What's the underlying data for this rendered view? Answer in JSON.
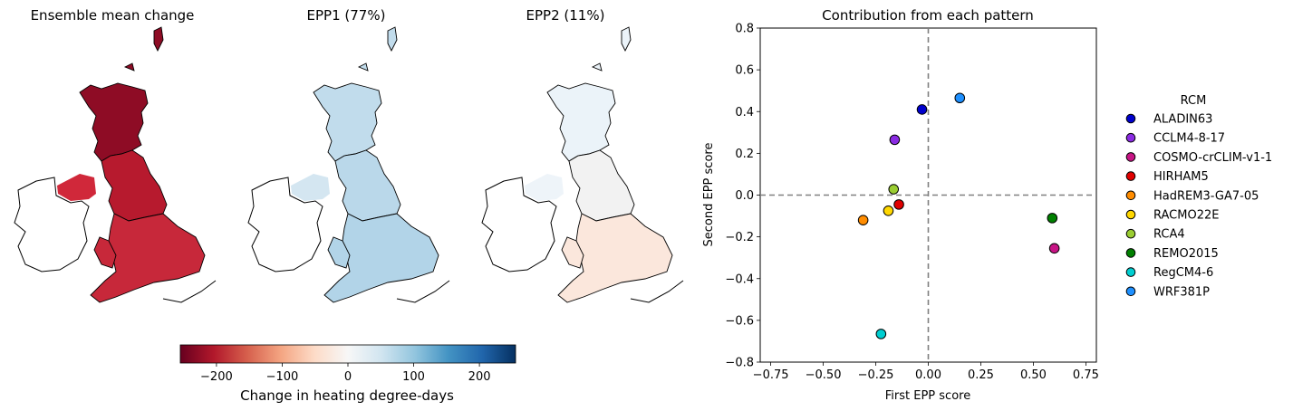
{
  "maps": {
    "panel_titles": [
      "Ensemble mean change",
      "EPP1 (77%)",
      "EPP2 (11%)"
    ],
    "panel_fills": [
      {
        "ni": "#d0283a",
        "scotland": "#8e0c25",
        "north": "#b71a2e",
        "south": "#c7283a",
        "island": "#8e0c25"
      },
      {
        "ni": "#d4e6f1",
        "scotland": "#c1dcec",
        "north": "#bad8ea",
        "south": "#b2d4e8",
        "island": "#c1dcec"
      },
      {
        "ni": "#eef4f9",
        "scotland": "#ebf3f9",
        "north": "#f2f2f2",
        "south": "#fbe7dc",
        "island": "#ebf3f9"
      }
    ],
    "colorbar": {
      "label": "Change in heating degree-days",
      "ticks": [
        "−200",
        "−100",
        "0",
        "100",
        "200"
      ],
      "tick_values": [
        -200,
        -100,
        0,
        100,
        200
      ],
      "range": [
        -255,
        255
      ],
      "colormap": "RdBu",
      "stops": [
        "#67001f",
        "#b2182b",
        "#d6604d",
        "#f4a582",
        "#fddbc7",
        "#f7f7f7",
        "#d1e5f0",
        "#92c5de",
        "#4393c3",
        "#2166ac",
        "#053061"
      ]
    }
  },
  "chart_data": {
    "type": "scatter",
    "title": "Contribution from each pattern",
    "xlabel": "First EPP score",
    "ylabel": "Second EPP score",
    "xlim": [
      -0.8,
      0.8
    ],
    "ylim": [
      -0.8,
      0.8
    ],
    "x_ticks": [
      "−0.75",
      "−0.50",
      "−0.25",
      "0.00",
      "0.25",
      "0.50",
      "0.75"
    ],
    "x_tick_values": [
      -0.75,
      -0.5,
      -0.25,
      0,
      0.25,
      0.5,
      0.75
    ],
    "y_ticks": [
      "−0.8",
      "−0.6",
      "−0.4",
      "−0.2",
      "0.0",
      "0.2",
      "0.4",
      "0.6",
      "0.8"
    ],
    "y_tick_values": [
      -0.8,
      -0.6,
      -0.4,
      -0.2,
      0,
      0.2,
      0.4,
      0.6,
      0.8
    ],
    "reference_lines": {
      "x": 0,
      "y": 0,
      "style": "dashed",
      "color": "#808080"
    },
    "grid": false,
    "legend_title": "RCM",
    "legend_placement": "right, outside",
    "points": [
      {
        "name": "ALADIN63",
        "x": -0.03,
        "y": 0.41,
        "color": "#0000cd"
      },
      {
        "name": "CCLM4-8-17",
        "x": -0.16,
        "y": 0.265,
        "color": "#8a2be2"
      },
      {
        "name": "COSMO-crCLIM-v1-1",
        "x": 0.6,
        "y": -0.255,
        "color": "#c71585"
      },
      {
        "name": "HIRHAM5",
        "x": -0.14,
        "y": -0.045,
        "color": "#e00000"
      },
      {
        "name": "HadREM3-GA7-05",
        "x": -0.31,
        "y": -0.12,
        "color": "#ff8c00"
      },
      {
        "name": "RACMO22E",
        "x": -0.19,
        "y": -0.075,
        "color": "#ffd700"
      },
      {
        "name": "RCA4",
        "x": -0.165,
        "y": 0.028,
        "color": "#9acd32"
      },
      {
        "name": "REMO2015",
        "x": 0.59,
        "y": -0.11,
        "color": "#008000"
      },
      {
        "name": "RegCM4-6",
        "x": -0.225,
        "y": -0.665,
        "color": "#00ced1"
      },
      {
        "name": "WRF381P",
        "x": 0.15,
        "y": 0.465,
        "color": "#1e90ff"
      }
    ]
  }
}
